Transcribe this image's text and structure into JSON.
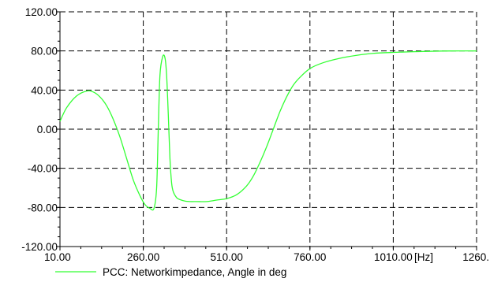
{
  "chart_data": {
    "type": "line",
    "title": "",
    "xlabel": "",
    "ylabel": "",
    "x_unit_label": "[Hz]",
    "xlim": [
      10,
      1260
    ],
    "ylim": [
      -120,
      120
    ],
    "x_ticks": [
      10,
      260,
      510,
      760,
      1010,
      1260
    ],
    "x_tick_labels": [
      "10.00",
      "260.00",
      "510.00",
      "760.00",
      "1010.00",
      "1260."
    ],
    "y_ticks": [
      120,
      80,
      40,
      0,
      -40,
      -80,
      -120
    ],
    "y_tick_labels": [
      "120.00",
      "80.00",
      "40.00",
      "0.00",
      "-40.00",
      "-80.00",
      "-120.00"
    ],
    "grid": true,
    "grid_style": "dashed",
    "legend_position": "bottom-left",
    "series": [
      {
        "name": "PCC: Networkimpedance, Angle in deg",
        "color": "#33ff33",
        "x": [
          10,
          30,
          60,
          90,
          110,
          130,
          150,
          170,
          190,
          210,
          230,
          250,
          265,
          280,
          292,
          300,
          305,
          310,
          318,
          325,
          330,
          335,
          340,
          345,
          350,
          360,
          370,
          385,
          400,
          420,
          450,
          480,
          510,
          540,
          570,
          590,
          610,
          630,
          650,
          670,
          690,
          710,
          730,
          760,
          800,
          850,
          900,
          950,
          1010,
          1100,
          1180,
          1260
        ],
        "y": [
          8,
          22,
          34,
          39,
          38,
          33,
          24,
          10,
          -8,
          -30,
          -52,
          -68,
          -77,
          -81,
          -81,
          -60,
          0,
          55,
          74,
          73,
          55,
          15,
          -30,
          -55,
          -64,
          -70,
          -72,
          -73.5,
          -74,
          -74,
          -74,
          -72.5,
          -71,
          -67,
          -58,
          -48,
          -34,
          -18,
          0,
          18,
          33,
          45,
          53,
          62,
          68,
          72.5,
          75.5,
          77.5,
          78.5,
          79.5,
          80,
          80
        ]
      }
    ]
  }
}
